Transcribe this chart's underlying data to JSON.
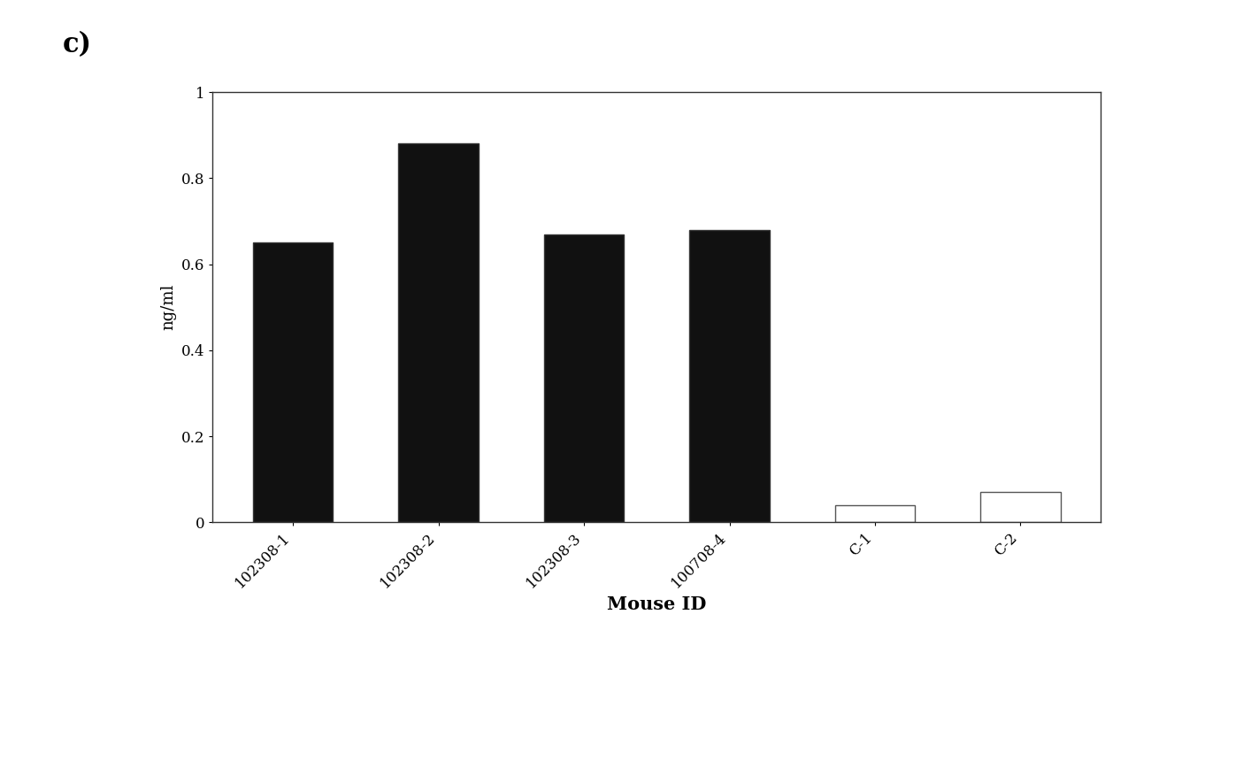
{
  "categories": [
    "102308-1",
    "102308-2",
    "102308-3",
    "100708-4",
    "C-1",
    "C-2"
  ],
  "values": [
    0.65,
    0.88,
    0.67,
    0.68,
    0.04,
    0.07
  ],
  "bar_colors": [
    "#111111",
    "#111111",
    "#111111",
    "#111111",
    "#ffffff",
    "#ffffff"
  ],
  "bar_edgecolors": [
    "#333333",
    "#333333",
    "#333333",
    "#333333",
    "#555555",
    "#555555"
  ],
  "panel_label": "c)",
  "xlabel": "Mouse ID",
  "ylabel": "ng/ml",
  "ylim": [
    0,
    1.0
  ],
  "yticks": [
    0,
    0.2,
    0.4,
    0.6,
    0.8,
    1
  ],
  "xlabel_fontsize": 15,
  "ylabel_fontsize": 13,
  "tick_label_fontsize": 12,
  "panel_label_fontsize": 22,
  "bar_width": 0.55,
  "background_color": "#ffffff"
}
